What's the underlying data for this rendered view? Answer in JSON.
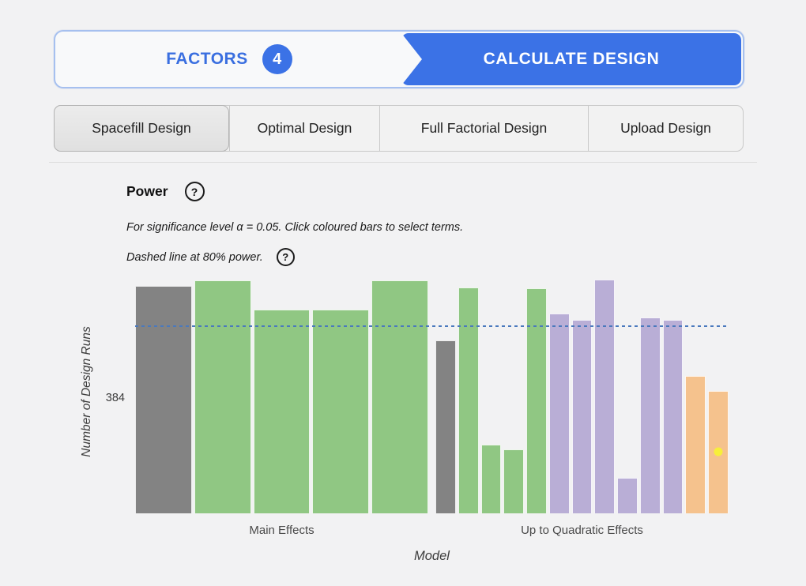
{
  "stepper": {
    "factors_label": "FACTORS",
    "factors_count": "4",
    "calculate_label": "CALCULATE DESIGN",
    "accent_color": "#3b72e6"
  },
  "tabs": {
    "items": [
      {
        "label": "Spacefill Design",
        "selected": true
      },
      {
        "label": "Optimal Design",
        "selected": false
      },
      {
        "label": "Full Factorial Design",
        "selected": false
      },
      {
        "label": "Upload Design",
        "selected": false
      }
    ]
  },
  "power_section": {
    "title": "Power",
    "help_icon": "?",
    "subtitle1": "For significance level α = 0.05. Click coloured bars to select terms.",
    "subtitle2": "Dashed line at 80% power.",
    "help_icon2": "?"
  },
  "chart_data": {
    "type": "bar",
    "ylabel": "Number of Design Runs",
    "xlabel": "Model",
    "y_tick_labels": [
      "384"
    ],
    "value_unit": "power_percent",
    "reference_line": {
      "value_percent": 80,
      "meaning": "80% power",
      "style": "dashed",
      "color": "#4a79bd"
    },
    "colors": {
      "baseline": "#838383",
      "main_effect": "#90c783",
      "interaction": "#b9aed6",
      "quadratic": "#f5c28d"
    },
    "groups": [
      {
        "label": "Main Effects",
        "bars": [
          {
            "color": "baseline",
            "power_percent": 97.5
          },
          {
            "color": "main_effect",
            "power_percent": 99.8
          },
          {
            "color": "main_effect",
            "power_percent": 87.2
          },
          {
            "color": "main_effect",
            "power_percent": 87.2
          },
          {
            "color": "main_effect",
            "power_percent": 99.8
          }
        ]
      },
      {
        "label": "Up to Quadratic Effects",
        "bars": [
          {
            "color": "baseline",
            "power_percent": 74.2
          },
          {
            "color": "main_effect",
            "power_percent": 96.6
          },
          {
            "color": "main_effect",
            "power_percent": 29.3
          },
          {
            "color": "main_effect",
            "power_percent": 27.3
          },
          {
            "color": "main_effect",
            "power_percent": 96.5
          },
          {
            "color": "interaction",
            "power_percent": 85.7
          },
          {
            "color": "interaction",
            "power_percent": 82.8
          },
          {
            "color": "interaction",
            "power_percent": 100.0
          },
          {
            "color": "interaction",
            "power_percent": 15.1
          },
          {
            "color": "interaction",
            "power_percent": 83.9
          },
          {
            "color": "interaction",
            "power_percent": 83.0
          },
          {
            "color": "quadratic",
            "power_percent": 58.9
          },
          {
            "color": "quadratic",
            "power_percent": 52.3
          }
        ]
      }
    ],
    "marker": {
      "group_index": 1,
      "bar_index": 12,
      "power_percent": 26.4,
      "color": "#f7ef3a"
    }
  }
}
